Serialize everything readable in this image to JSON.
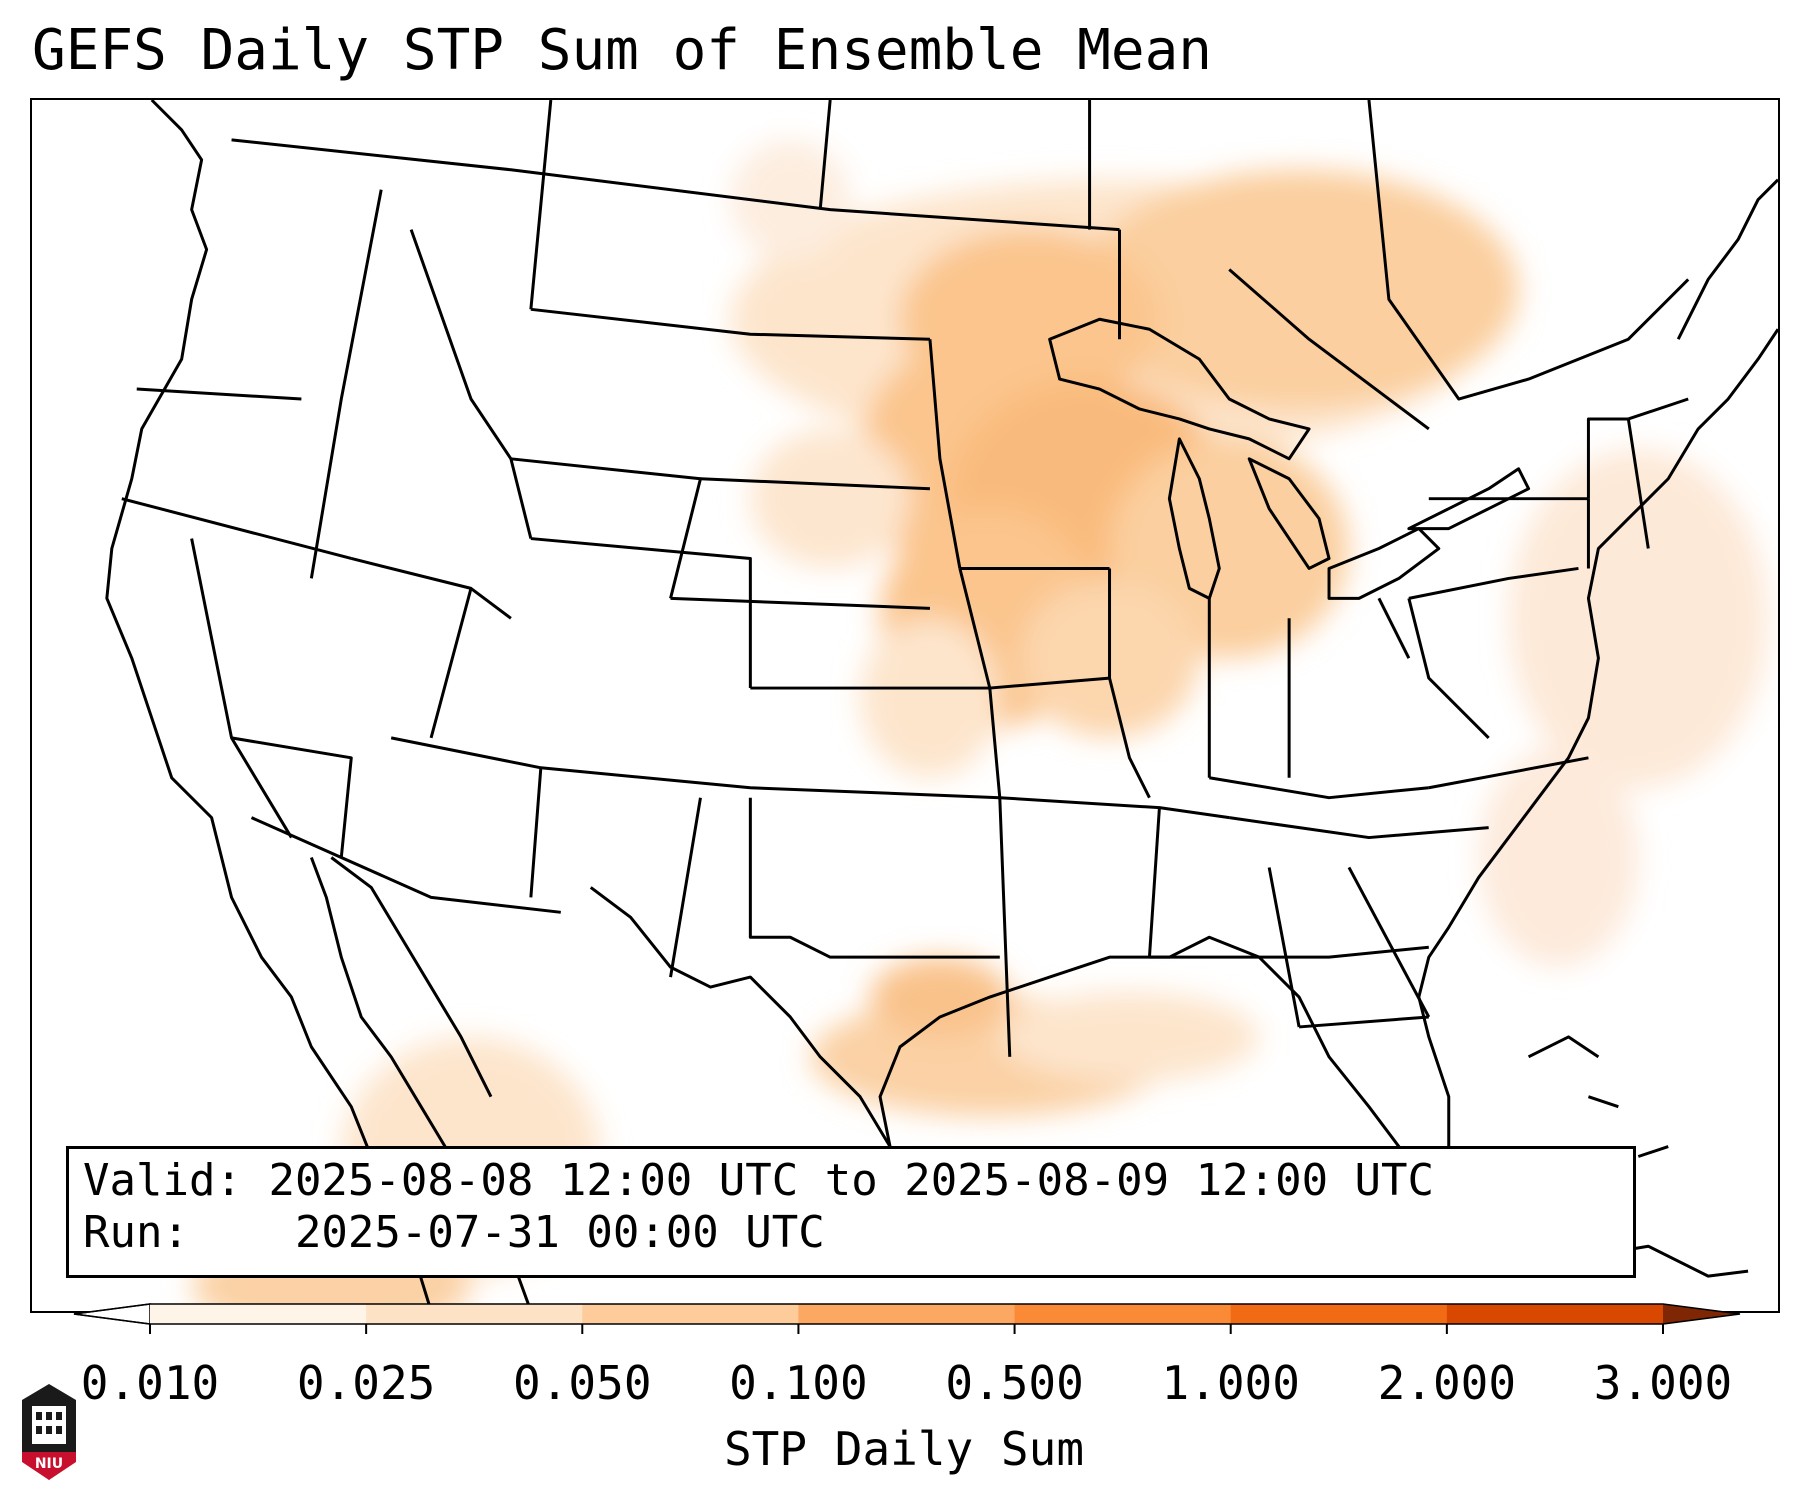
{
  "title": "GEFS Daily STP Sum of Ensemble Mean",
  "info_box": {
    "valid_label": "Valid:",
    "valid_value": "2025-08-08 12:00 UTC to 2025-08-09 12:00 UTC",
    "run_label": "Run:",
    "run_value": "2025-07-31 00:00 UTC"
  },
  "colorbar": {
    "label": "STP Daily Sum",
    "ticks": [
      "0.010",
      "0.025",
      "0.050",
      "0.100",
      "0.500",
      "1.000",
      "2.000",
      "3.000"
    ],
    "colors": [
      "#fff4e8",
      "#fee2c6",
      "#fdcc9a",
      "#fca762",
      "#fb8a36",
      "#f16b15",
      "#d84801"
    ],
    "extend": "both"
  },
  "map": {
    "projection": "Lambert Conformal",
    "region": "Contiguous United States",
    "highlight_colors": {
      "light": "#fde9d4",
      "medium": "#fbcc9c",
      "strong": "#f7b070"
    }
  },
  "logo": {
    "text": "NIU",
    "color": "#c8102e"
  }
}
